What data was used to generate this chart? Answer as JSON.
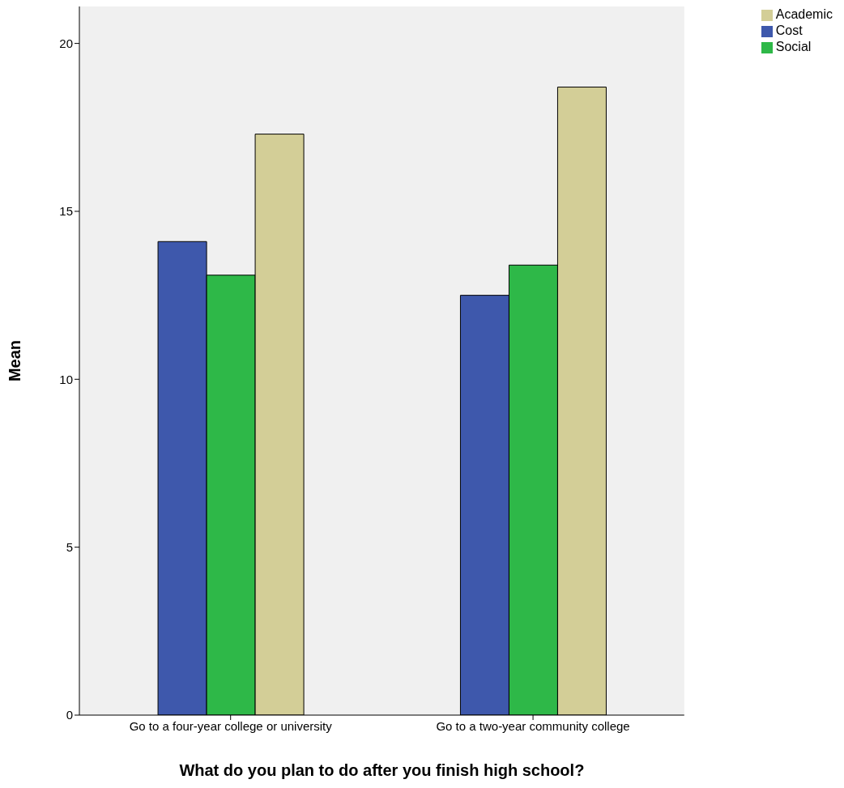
{
  "chart_data": {
    "type": "bar",
    "xlabel": "What do you plan to do after you finish high school?",
    "ylabel": "Mean",
    "categories": [
      "Go to a four-year college or university",
      "Go to a two-year community college"
    ],
    "series": [
      {
        "name": "Cost",
        "color": "#3e58ac",
        "values": [
          14.1,
          12.5
        ]
      },
      {
        "name": "Social",
        "color": "#2eb848",
        "values": [
          13.1,
          13.4
        ]
      },
      {
        "name": "Academic",
        "color": "#d3ce97",
        "values": [
          17.3,
          18.7
        ]
      }
    ],
    "ylim": [
      0,
      21.1
    ],
    "yticks": [
      0,
      5,
      10,
      15,
      20
    ],
    "legend": "top right"
  }
}
